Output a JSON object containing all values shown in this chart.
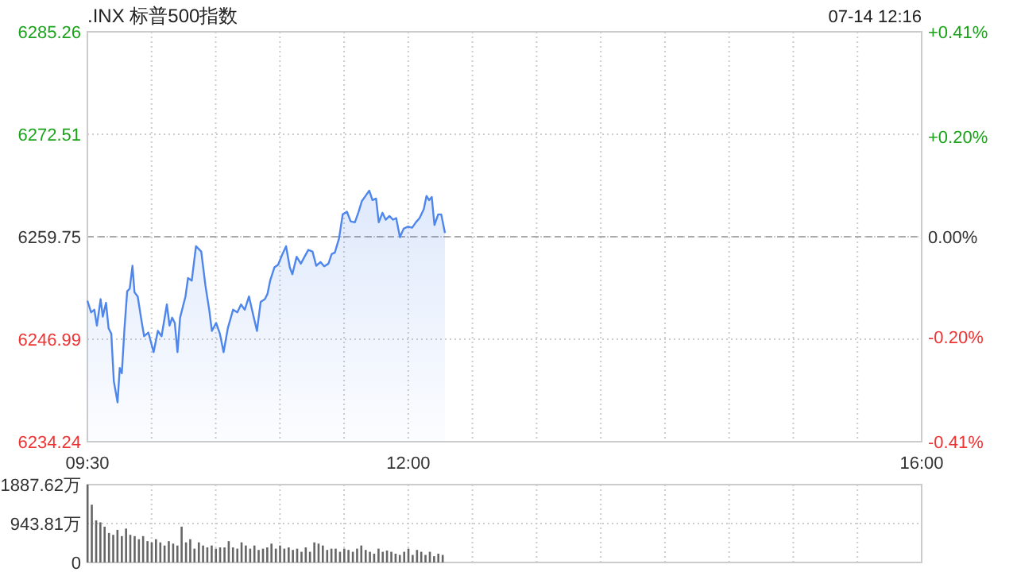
{
  "chart_data": [
    {
      "type": "area",
      "title": ".INX 标普500指数",
      "annotations": [
        "07-14 12:16"
      ],
      "x": [
        9.5,
        9.529,
        9.554,
        9.574,
        9.603,
        9.62,
        9.645,
        9.665,
        9.686,
        9.706,
        9.735,
        9.752,
        9.768,
        9.789,
        9.81,
        9.83,
        9.851,
        9.867,
        9.892,
        9.921,
        9.942,
        9.975,
        10.016,
        10.049,
        10.078,
        10.119,
        10.14,
        10.16,
        10.181,
        10.202,
        10.222,
        10.264,
        10.284,
        10.313,
        10.346,
        10.387,
        10.42,
        10.449,
        10.47,
        10.503,
        10.532,
        10.561,
        10.594,
        10.635,
        10.668,
        10.697,
        10.726,
        10.759,
        10.792,
        10.821,
        10.85,
        10.883,
        10.903,
        10.924,
        10.957,
        10.986,
        11.019,
        11.048,
        11.077,
        11.097,
        11.13,
        11.163,
        11.192,
        11.221,
        11.254,
        11.283,
        11.316,
        11.345,
        11.378,
        11.403,
        11.428,
        11.461,
        11.489,
        11.522,
        11.551,
        11.584,
        11.613,
        11.638,
        11.667,
        11.696,
        11.721,
        11.749,
        11.77,
        11.799,
        11.824,
        11.853,
        11.882,
        11.906,
        11.935,
        11.964,
        11.997,
        12.03,
        12.059,
        12.088,
        12.121,
        12.142,
        12.162,
        12.183,
        12.204,
        12.233,
        12.257,
        12.286
      ],
      "series": [
        {
          "color": "#4f86ec",
          "values": [
            6251.79,
            6250.34,
            6250.67,
            6248.69,
            6251.98,
            6249.81,
            6251.52,
            6248.36,
            6247.7,
            6241.77,
            6239.13,
            6243.42,
            6242.76,
            6248.36,
            6252.97,
            6253.3,
            6256.14,
            6252.84,
            6252.31,
            6249.35,
            6247.37,
            6247.83,
            6245.39,
            6248.03,
            6247.37,
            6251.32,
            6248.69,
            6249.68,
            6249.02,
            6245.39,
            6249.68,
            6252.31,
            6254.62,
            6254.29,
            6258.57,
            6257.91,
            6253.63,
            6250.67,
            6248.03,
            6249.02,
            6247.7,
            6245.39,
            6248.36,
            6250.67,
            6250.34,
            6251.32,
            6250.67,
            6252.31,
            6250.01,
            6248.03,
            6251.65,
            6251.98,
            6252.64,
            6254.29,
            6255.94,
            6256.27,
            6257.58,
            6258.57,
            6255.94,
            6255.08,
            6257.26,
            6256.4,
            6257.26,
            6258.11,
            6257.91,
            6256.14,
            6256.6,
            6256.07,
            6256.4,
            6257.58,
            6257.78,
            6259.56,
            6262.53,
            6262.86,
            6261.67,
            6261.54,
            6262.86,
            6264.17,
            6264.83,
            6265.49,
            6264.31,
            6264.5,
            6261.54,
            6262.73,
            6261.87,
            6262.33,
            6261.87,
            6262.07,
            6259.69,
            6260.75,
            6261.01,
            6260.88,
            6261.54,
            6262.07,
            6263.19,
            6264.83,
            6264.31,
            6264.7,
            6261.21,
            6262.53,
            6262.53,
            6260.22
          ]
        }
      ],
      "xlim": [
        9.5,
        16
      ],
      "xticks": [
        {
          "value": 9.5,
          "label": "09:30"
        },
        {
          "value": 10,
          "label": null
        },
        {
          "value": 10.5,
          "label": null
        },
        {
          "value": 11,
          "label": null
        },
        {
          "value": 11.5,
          "label": null
        },
        {
          "value": 12,
          "label": "12:00"
        },
        {
          "value": 12.5,
          "label": null
        },
        {
          "value": 13,
          "label": null
        },
        {
          "value": 13.5,
          "label": null
        },
        {
          "value": 14,
          "label": null
        },
        {
          "value": 14.5,
          "label": null
        },
        {
          "value": 15,
          "label": null
        },
        {
          "value": 15.5,
          "label": null
        },
        {
          "value": 16,
          "label": "16:00"
        }
      ],
      "ylim": [
        6234.24,
        6285.26
      ],
      "yticks": [
        6234.24,
        6246.99,
        6259.75,
        6272.51,
        6285.26
      ],
      "y2lim": [
        -0.41,
        0.41
      ],
      "y2ticks": [
        {
          "value": -0.41,
          "label": "-0.41%"
        },
        {
          "value": -0.2,
          "label": "-0.20%"
        },
        {
          "value": 0,
          "label": "0.00%"
        },
        {
          "value": 0.2,
          "label": "+0.20%"
        },
        {
          "value": 0.41,
          "label": "+0.41%"
        }
      ],
      "ref_lines": [
        {
          "axis": "y",
          "value": 6259.75,
          "line_style": "dashed",
          "color": "#aaaaaa"
        }
      ],
      "grid": true
    },
    {
      "type": "bar",
      "x": [
        9.5,
        9.533,
        9.567,
        9.6,
        9.633,
        9.667,
        9.7,
        9.733,
        9.767,
        9.8,
        9.833,
        9.867,
        9.9,
        9.933,
        9.967,
        10,
        10.033,
        10.067,
        10.1,
        10.133,
        10.167,
        10.2,
        10.233,
        10.267,
        10.3,
        10.333,
        10.367,
        10.4,
        10.433,
        10.467,
        10.5,
        10.533,
        10.567,
        10.6,
        10.633,
        10.667,
        10.7,
        10.733,
        10.767,
        10.8,
        10.833,
        10.867,
        10.9,
        10.933,
        10.967,
        11,
        11.033,
        11.067,
        11.1,
        11.133,
        11.167,
        11.2,
        11.233,
        11.267,
        11.3,
        11.333,
        11.367,
        11.4,
        11.433,
        11.467,
        11.5,
        11.533,
        11.567,
        11.6,
        11.633,
        11.667,
        11.7,
        11.733,
        11.767,
        11.8,
        11.833,
        11.867,
        11.9,
        11.933,
        11.967,
        12,
        12.033,
        12.067,
        12.1,
        12.133,
        12.167,
        12.2,
        12.233,
        12.267
      ],
      "series": [
        {
          "color": "#666666",
          "values": [
            1887.62,
            1400,
            1020,
            974,
            868,
            715,
            670,
            791,
            639,
            822,
            670,
            639,
            563,
            639,
            517,
            487,
            563,
            487,
            411,
            517,
            457,
            411,
            868,
            487,
            563,
            335,
            487,
            411,
            365,
            411,
            335,
            365,
            365,
            517,
            365,
            335,
            487,
            411,
            335,
            411,
            304,
            335,
            365,
            457,
            335,
            411,
            335,
            365,
            304,
            335,
            259,
            365,
            259,
            487,
            457,
            411,
            304,
            335,
            335,
            259,
            335,
            304,
            259,
            335,
            411,
            304,
            259,
            213,
            335,
            259,
            289,
            259,
            213,
            183,
            259,
            335,
            183,
            304,
            259,
            183,
            259,
            152,
            213,
            183
          ]
        }
      ],
      "xlim": [
        9.5,
        16
      ],
      "xticks": [
        {
          "value": 9.5,
          "label": null
        },
        {
          "value": 10,
          "label": null
        },
        {
          "value": 10.5,
          "label": null
        },
        {
          "value": 11,
          "label": null
        },
        {
          "value": 11.5,
          "label": null
        },
        {
          "value": 12,
          "label": null
        },
        {
          "value": 12.5,
          "label": null
        },
        {
          "value": 13,
          "label": null
        },
        {
          "value": 13.5,
          "label": null
        },
        {
          "value": 14,
          "label": null
        },
        {
          "value": 14.5,
          "label": null
        },
        {
          "value": 15,
          "label": null
        },
        {
          "value": 15.5,
          "label": null
        },
        {
          "value": 16,
          "label": null
        }
      ],
      "ylim": [
        0,
        1887.62
      ],
      "yticks": [
        {
          "value": 0,
          "label": "0"
        },
        {
          "value": 943.81,
          "label": "943.81万"
        },
        {
          "value": 1887.62,
          "label": "1887.62万"
        }
      ],
      "tick_labels": "y",
      "grid": true
    }
  ]
}
